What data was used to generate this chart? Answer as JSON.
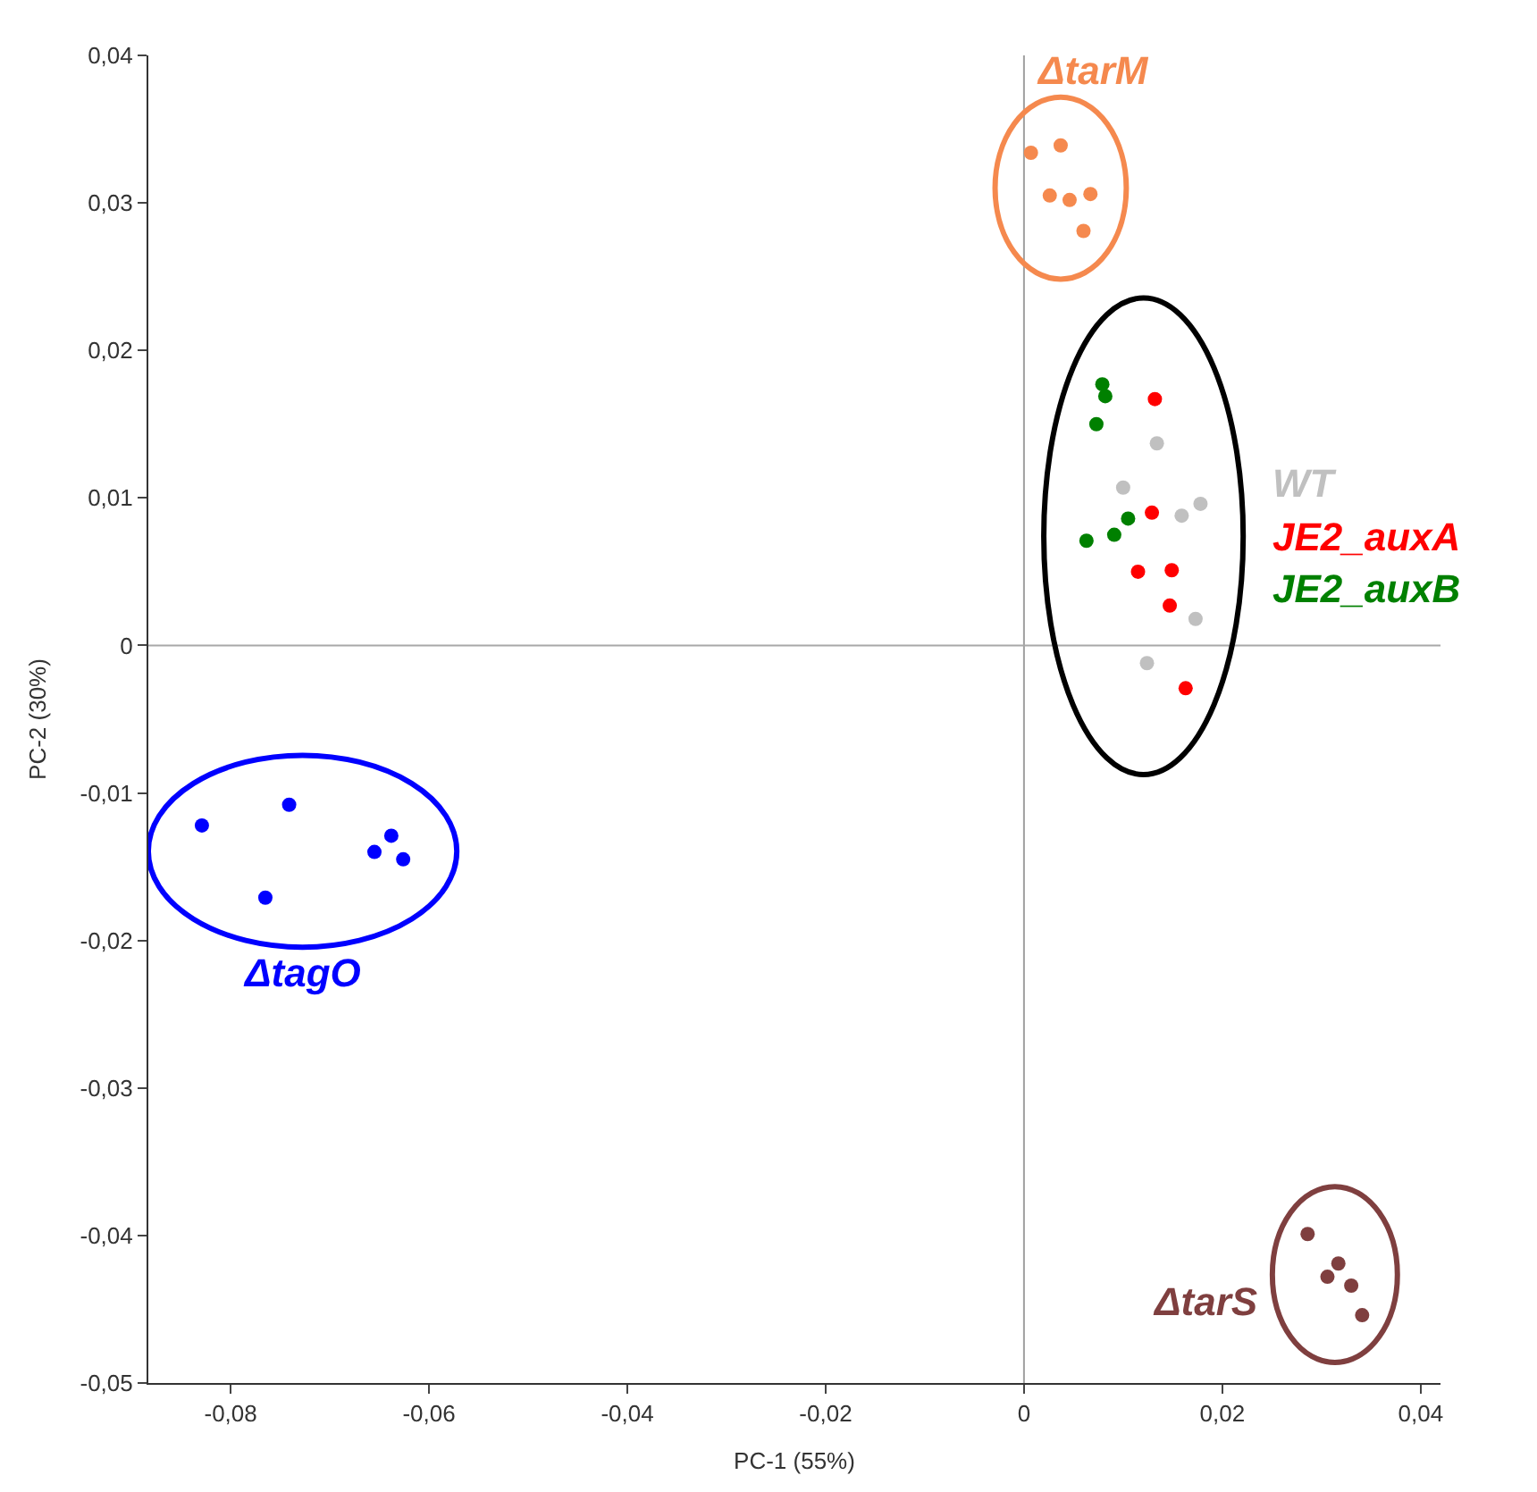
{
  "chart_data": {
    "type": "scatter",
    "xlabel": "PC-1 (55%)",
    "ylabel": "PC-2 (30%)",
    "xlim": [
      -0.0883,
      0.042
    ],
    "ylim": [
      -0.05,
      0.04
    ],
    "xticks": [
      {
        "value": -0.08,
        "label": "-0,08"
      },
      {
        "value": -0.06,
        "label": "-0,06"
      },
      {
        "value": -0.04,
        "label": "-0,04"
      },
      {
        "value": -0.02,
        "label": "-0,02"
      },
      0,
      {
        "value": 0.02,
        "label": "0,02"
      },
      {
        "value": 0.04,
        "label": "0,04"
      }
    ],
    "yticks": [
      {
        "value": -0.05,
        "label": "-0,05"
      },
      {
        "value": -0.04,
        "label": "-0,04"
      },
      {
        "value": -0.03,
        "label": "-0,03"
      },
      {
        "value": -0.02,
        "label": "-0,02"
      },
      {
        "value": -0.01,
        "label": "-0,01"
      },
      0,
      {
        "value": 0.01,
        "label": "0,01"
      },
      {
        "value": 0.02,
        "label": "0,02"
      },
      {
        "value": 0.03,
        "label": "0,03"
      },
      {
        "value": 0.04,
        "label": "0,04"
      }
    ],
    "ref_lines": [
      {
        "axis": "x",
        "value": 0,
        "color": "#a0a0a0"
      },
      {
        "axis": "y",
        "value": 0,
        "color": "#a8a8a8"
      }
    ],
    "grid": false,
    "legend": false,
    "marker": "circle",
    "series": [
      {
        "name": "ΔtarM",
        "color": "#f5894e",
        "x": [
          0.0007,
          0.0037,
          0.0026,
          0.0046,
          0.0067,
          0.006
        ],
        "values": [
          0.0334,
          0.0339,
          0.0305,
          0.0302,
          0.0306,
          0.0281
        ]
      },
      {
        "name": "WT",
        "color": "#c0c0c0",
        "x": [
          0.0134,
          0.01,
          0.0159,
          0.0178,
          0.0173,
          0.0124
        ],
        "values": [
          0.0137,
          0.0107,
          0.0088,
          0.0096,
          0.0018,
          -0.0012
        ]
      },
      {
        "name": "JE2_auxA",
        "color": "#ff0000",
        "x": [
          0.0132,
          0.0129,
          0.0115,
          0.0149,
          0.0147,
          0.0163
        ],
        "values": [
          0.0167,
          0.009,
          0.005,
          0.0051,
          0.0027,
          -0.0029
        ]
      },
      {
        "name": "JE2_auxB",
        "color": "#008000",
        "x": [
          0.0079,
          0.0082,
          0.0073,
          0.0105,
          0.0091,
          0.0063
        ],
        "values": [
          0.0177,
          0.0169,
          0.015,
          0.0086,
          0.0075,
          0.0071
        ]
      },
      {
        "name": "ΔtagO",
        "color": "#0000ff",
        "x": [
          -0.0829,
          -0.0741,
          -0.0765,
          -0.0655,
          -0.0638,
          -0.0626
        ],
        "values": [
          -0.0122,
          -0.0108,
          -0.0171,
          -0.014,
          -0.0129,
          -0.0145
        ]
      },
      {
        "name": "ΔtarS",
        "color": "#7f3f3f",
        "x": [
          0.0286,
          0.0317,
          0.0306,
          0.033,
          0.0341
        ],
        "values": [
          -0.0399,
          -0.0419,
          -0.0428,
          -0.0434,
          -0.0454
        ]
      }
    ]
  }
}
